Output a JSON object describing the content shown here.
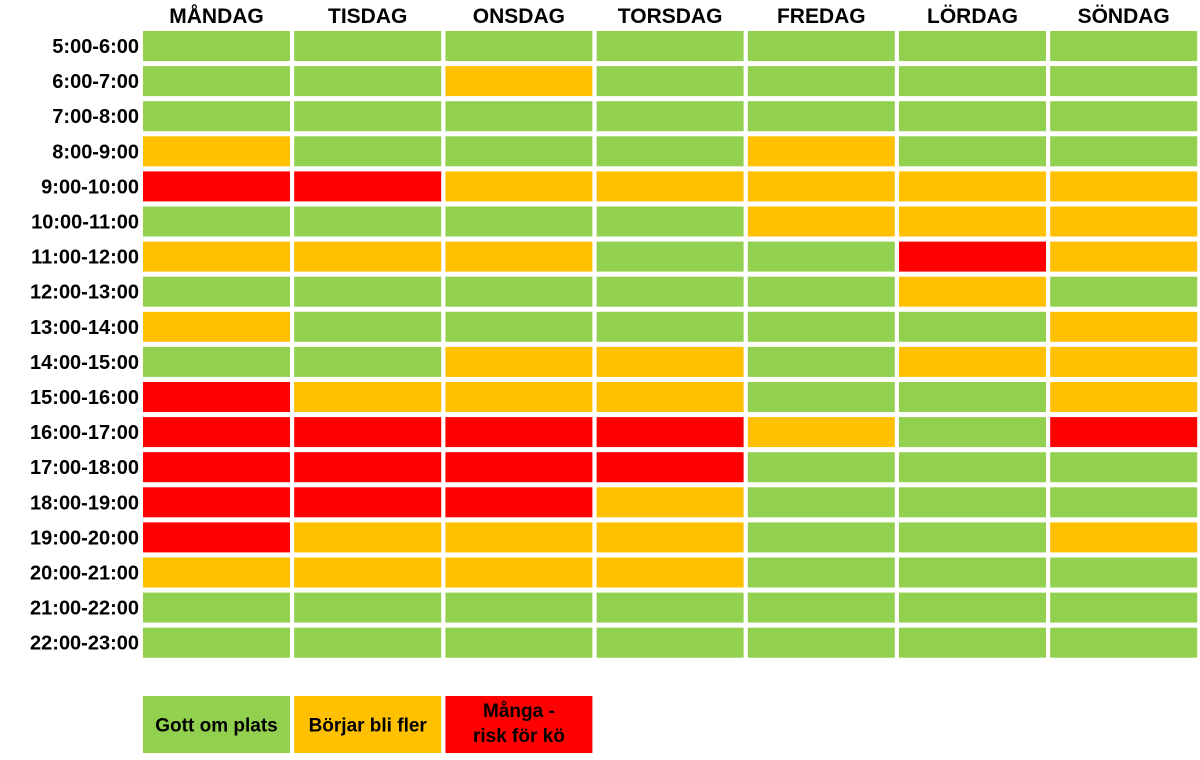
{
  "chart_data": {
    "type": "heatmap",
    "days": [
      "MÅNDAG",
      "TISDAG",
      "ONSDAG",
      "TORSDAG",
      "FREDAG",
      "LÖRDAG",
      "SÖNDAG"
    ],
    "time_slots": [
      "5:00-6:00",
      "6:00-7:00",
      "7:00-8:00",
      "8:00-9:00",
      "9:00-10:00",
      "10:00-11:00",
      "11:00-12:00",
      "12:00-13:00",
      "13:00-14:00",
      "14:00-15:00",
      "15:00-16:00",
      "16:00-17:00",
      "17:00-18:00",
      "18:00-19:00",
      "19:00-20:00",
      "20:00-21:00",
      "21:00-22:00",
      "22:00-23:00"
    ],
    "levels": [
      {
        "label": "Gott om plats",
        "color": "#92d050"
      },
      {
        "label": "Börjar bli fler",
        "color": "#ffc000"
      },
      {
        "label_lines": [
          "Många -",
          "risk för kö"
        ],
        "color": "#ff0000"
      }
    ],
    "values": [
      [
        0,
        0,
        0,
        0,
        0,
        0,
        0
      ],
      [
        0,
        0,
        1,
        0,
        0,
        0,
        0
      ],
      [
        0,
        0,
        0,
        0,
        0,
        0,
        0
      ],
      [
        1,
        0,
        0,
        0,
        1,
        0,
        0
      ],
      [
        2,
        2,
        1,
        1,
        1,
        1,
        1
      ],
      [
        0,
        0,
        0,
        0,
        1,
        1,
        1
      ],
      [
        1,
        1,
        1,
        0,
        0,
        2,
        1
      ],
      [
        0,
        0,
        0,
        0,
        0,
        1,
        0
      ],
      [
        1,
        0,
        0,
        0,
        0,
        0,
        1
      ],
      [
        0,
        0,
        1,
        1,
        0,
        1,
        1
      ],
      [
        2,
        1,
        1,
        1,
        0,
        0,
        1
      ],
      [
        2,
        2,
        2,
        2,
        1,
        0,
        2
      ],
      [
        2,
        2,
        2,
        2,
        0,
        0,
        0
      ],
      [
        2,
        2,
        2,
        1,
        0,
        0,
        0
      ],
      [
        2,
        1,
        1,
        1,
        0,
        0,
        1
      ],
      [
        1,
        1,
        1,
        1,
        0,
        0,
        0
      ],
      [
        0,
        0,
        0,
        0,
        0,
        0,
        0
      ],
      [
        0,
        0,
        0,
        0,
        0,
        0,
        0
      ]
    ]
  }
}
